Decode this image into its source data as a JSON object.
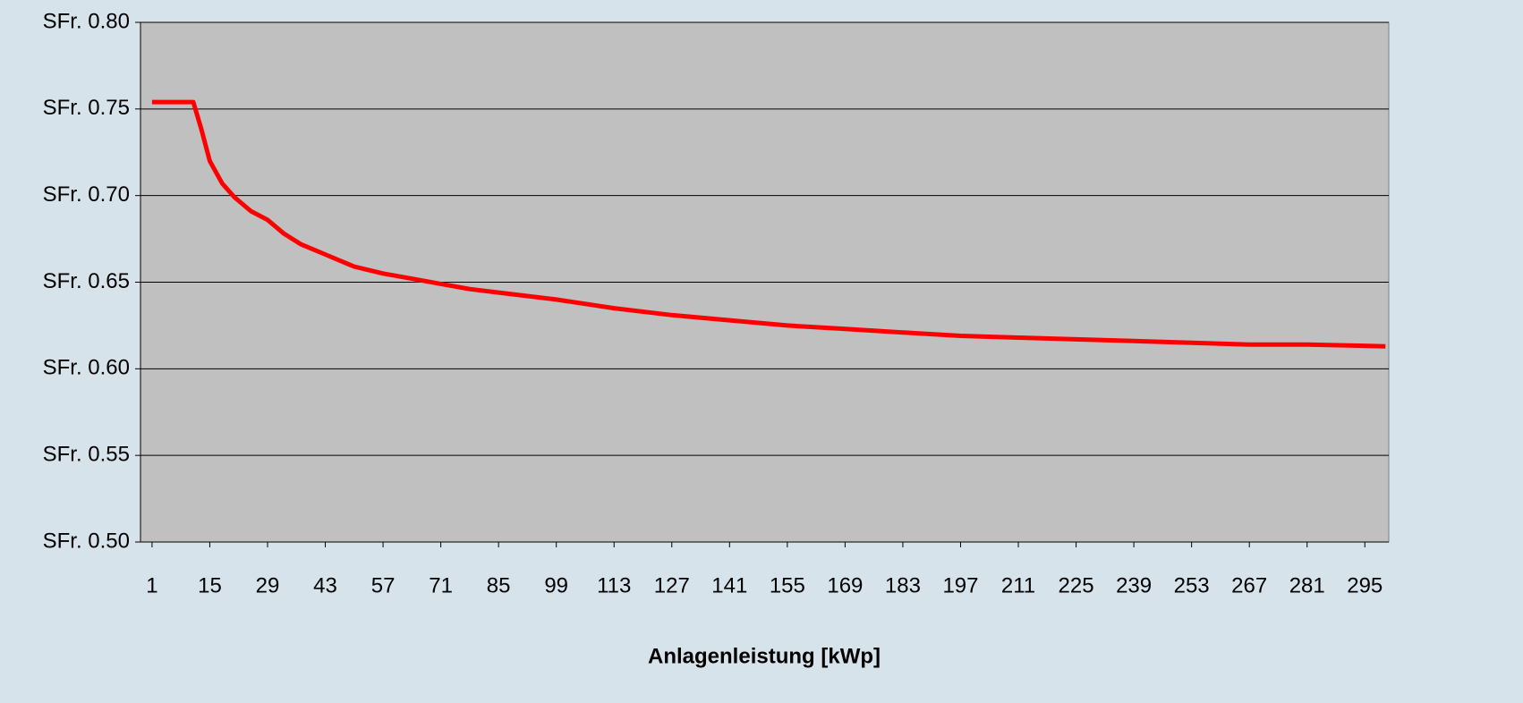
{
  "chart_data": {
    "type": "line",
    "x_label": "Anlagenleistung [kWp]",
    "x": [
      1,
      11,
      13,
      15,
      18,
      21,
      25,
      29,
      33,
      37,
      43,
      50,
      57,
      64,
      71,
      78,
      85,
      99,
      113,
      127,
      141,
      155,
      169,
      183,
      197,
      211,
      225,
      239,
      253,
      267,
      281,
      300
    ],
    "values": [
      0.754,
      0.754,
      0.738,
      0.72,
      0.707,
      0.699,
      0.691,
      0.686,
      0.678,
      0.672,
      0.666,
      0.659,
      0.655,
      0.652,
      0.649,
      0.646,
      0.644,
      0.64,
      0.635,
      0.631,
      0.628,
      0.625,
      0.623,
      0.621,
      0.619,
      0.618,
      0.617,
      0.616,
      0.615,
      0.614,
      0.614,
      0.613
    ],
    "color": "#ff0000",
    "xlim": [
      -1.8,
      300.8
    ],
    "xticks": [
      1,
      15,
      29,
      43,
      57,
      71,
      85,
      99,
      113,
      127,
      141,
      155,
      169,
      183,
      197,
      211,
      225,
      239,
      253,
      267,
      281,
      295
    ],
    "ylim": [
      0.5,
      0.8
    ],
    "yticks": [
      {
        "value": 0.5,
        "label": "SFr. 0.50"
      },
      {
        "value": 0.55,
        "label": "SFr. 0.55"
      },
      {
        "value": 0.6,
        "label": "SFr. 0.60"
      },
      {
        "value": 0.65,
        "label": "SFr. 0.65"
      },
      {
        "value": 0.7,
        "label": "SFr. 0.70"
      },
      {
        "value": 0.75,
        "label": "SFr. 0.75"
      },
      {
        "value": 0.8,
        "label": "SFr. 0.80"
      }
    ],
    "grid": true
  }
}
